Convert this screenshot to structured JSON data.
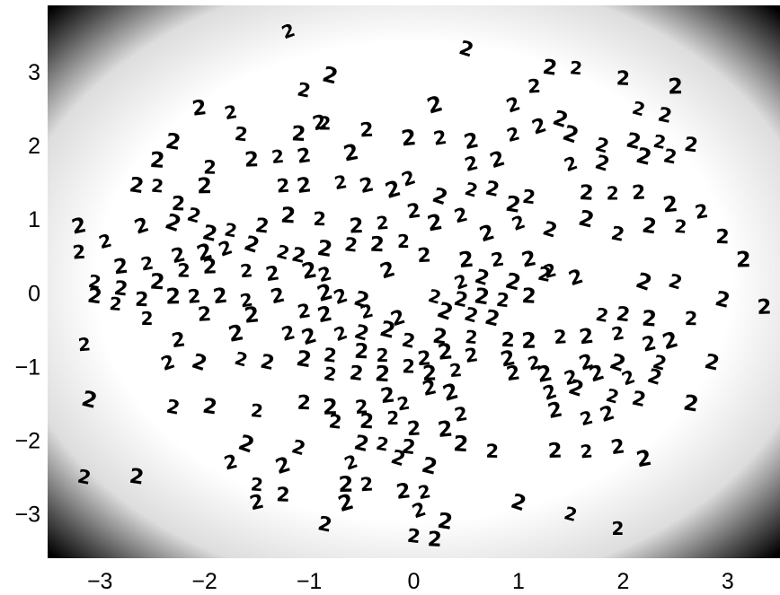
{
  "chart_data": {
    "type": "scatter",
    "title": "",
    "xlabel": "",
    "ylabel": "",
    "xlim": [
      -3.5,
      3.5
    ],
    "ylim": [
      -3.6,
      3.9
    ],
    "grid": false,
    "background": "grayscale density map, dark corners fading to white center",
    "marker_glyph": "2",
    "x_ticks": [
      {
        "value": -3,
        "label": "−3"
      },
      {
        "value": -2,
        "label": "−2"
      },
      {
        "value": -1,
        "label": "−1"
      },
      {
        "value": 0,
        "label": "0"
      },
      {
        "value": 1,
        "label": "1"
      },
      {
        "value": 2,
        "label": "2"
      },
      {
        "value": 3,
        "label": "3"
      }
    ],
    "y_ticks": [
      {
        "value": 3,
        "label": "3"
      },
      {
        "value": 2,
        "label": "2"
      },
      {
        "value": 1,
        "label": "1"
      },
      {
        "value": 0,
        "label": "0"
      },
      {
        "value": -1,
        "label": "−1"
      },
      {
        "value": -2,
        "label": "−2"
      },
      {
        "value": -3,
        "label": "−3"
      }
    ],
    "points": [
      [
        -1.2,
        3.55
      ],
      [
        0.5,
        3.3
      ],
      [
        -0.8,
        2.95
      ],
      [
        -1.05,
        2.75
      ],
      [
        1.3,
        3.05
      ],
      [
        1.55,
        3.05
      ],
      [
        2.0,
        2.9
      ],
      [
        2.5,
        2.8
      ],
      [
        1.15,
        2.8
      ],
      [
        -2.05,
        2.5
      ],
      [
        -1.75,
        2.45
      ],
      [
        -0.9,
        2.3
      ],
      [
        0.2,
        2.55
      ],
      [
        0.95,
        2.55
      ],
      [
        1.4,
        2.35
      ],
      [
        2.15,
        2.5
      ],
      [
        2.4,
        2.4
      ],
      [
        -2.3,
        2.05
      ],
      [
        -1.65,
        2.15
      ],
      [
        -1.1,
        2.15
      ],
      [
        -0.85,
        2.3
      ],
      [
        -0.45,
        2.2
      ],
      [
        -0.05,
        2.1
      ],
      [
        0.25,
        2.1
      ],
      [
        0.55,
        2.05
      ],
      [
        0.95,
        2.15
      ],
      [
        1.2,
        2.25
      ],
      [
        1.5,
        2.15
      ],
      [
        1.8,
        2.0
      ],
      [
        2.1,
        2.05
      ],
      [
        2.35,
        2.05
      ],
      [
        2.65,
        2.0
      ],
      [
        -2.45,
        1.8
      ],
      [
        -1.95,
        1.7
      ],
      [
        -1.55,
        1.8
      ],
      [
        -1.3,
        1.85
      ],
      [
        -1.05,
        1.85
      ],
      [
        -0.6,
        1.9
      ],
      [
        0.55,
        1.75
      ],
      [
        0.8,
        1.8
      ],
      [
        1.5,
        1.75
      ],
      [
        1.8,
        1.75
      ],
      [
        2.2,
        1.85
      ],
      [
        2.45,
        1.85
      ],
      [
        -2.65,
        1.45
      ],
      [
        -2.45,
        1.45
      ],
      [
        -2.25,
        1.2
      ],
      [
        -2.0,
        1.45
      ],
      [
        -1.25,
        1.45
      ],
      [
        -1.05,
        1.45
      ],
      [
        -0.7,
        1.5
      ],
      [
        -0.45,
        1.45
      ],
      [
        -0.2,
        1.4
      ],
      [
        -0.05,
        1.55
      ],
      [
        0.25,
        1.3
      ],
      [
        0.55,
        1.4
      ],
      [
        0.75,
        1.4
      ],
      [
        0.95,
        1.2
      ],
      [
        1.1,
        1.3
      ],
      [
        1.65,
        1.35
      ],
      [
        1.9,
        1.35
      ],
      [
        2.15,
        1.35
      ],
      [
        2.45,
        1.2
      ],
      [
        2.75,
        1.1
      ],
      [
        -3.2,
        0.9
      ],
      [
        -2.95,
        0.7
      ],
      [
        -2.6,
        0.9
      ],
      [
        -2.3,
        0.95
      ],
      [
        -2.1,
        1.05
      ],
      [
        -1.95,
        0.8
      ],
      [
        -1.75,
        0.85
      ],
      [
        -1.45,
        0.9
      ],
      [
        -1.2,
        1.05
      ],
      [
        -0.9,
        1.0
      ],
      [
        -0.55,
        0.9
      ],
      [
        -0.3,
        0.95
      ],
      [
        0.0,
        1.1
      ],
      [
        0.2,
        0.95
      ],
      [
        0.45,
        1.05
      ],
      [
        0.7,
        0.8
      ],
      [
        1.0,
        0.95
      ],
      [
        1.3,
        0.85
      ],
      [
        1.65,
        1.0
      ],
      [
        1.95,
        0.8
      ],
      [
        2.25,
        0.9
      ],
      [
        2.55,
        0.9
      ],
      [
        2.95,
        0.75
      ],
      [
        3.15,
        0.45
      ],
      [
        -3.2,
        0.55
      ],
      [
        -2.8,
        0.35
      ],
      [
        -2.55,
        0.4
      ],
      [
        -2.25,
        0.5
      ],
      [
        -2.0,
        0.55
      ],
      [
        -1.8,
        0.6
      ],
      [
        -1.55,
        0.65
      ],
      [
        -1.25,
        0.55
      ],
      [
        -1.1,
        0.5
      ],
      [
        -0.85,
        0.6
      ],
      [
        -0.6,
        0.65
      ],
      [
        -0.35,
        0.65
      ],
      [
        -0.1,
        0.7
      ],
      [
        0.1,
        0.5
      ],
      [
        0.5,
        0.45
      ],
      [
        0.8,
        0.45
      ],
      [
        1.1,
        0.45
      ],
      [
        1.3,
        0.3
      ],
      [
        1.55,
        0.2
      ],
      [
        2.2,
        0.15
      ],
      [
        2.5,
        0.15
      ],
      [
        2.95,
        -0.1
      ],
      [
        -3.05,
        0.15
      ],
      [
        -2.8,
        0.05
      ],
      [
        -2.45,
        0.15
      ],
      [
        -2.2,
        0.3
      ],
      [
        -1.95,
        0.35
      ],
      [
        -1.6,
        0.3
      ],
      [
        -1.35,
        0.25
      ],
      [
        -1.0,
        0.3
      ],
      [
        -0.85,
        0.25
      ],
      [
        -0.25,
        0.3
      ],
      [
        0.45,
        0.15
      ],
      [
        0.65,
        0.2
      ],
      [
        0.95,
        0.15
      ],
      [
        1.25,
        0.25
      ],
      [
        -3.05,
        -0.05
      ],
      [
        -2.85,
        -0.15
      ],
      [
        -2.6,
        -0.1
      ],
      [
        -2.3,
        -0.05
      ],
      [
        -2.1,
        -0.05
      ],
      [
        -1.85,
        -0.05
      ],
      [
        -1.6,
        -0.1
      ],
      [
        -1.3,
        -0.05
      ],
      [
        -0.85,
        0.0
      ],
      [
        -0.7,
        -0.05
      ],
      [
        -0.5,
        -0.1
      ],
      [
        0.2,
        -0.05
      ],
      [
        0.45,
        -0.1
      ],
      [
        0.65,
        -0.05
      ],
      [
        0.85,
        -0.1
      ],
      [
        1.1,
        -0.05
      ],
      [
        -2.55,
        -0.35
      ],
      [
        -2.0,
        -0.3
      ],
      [
        -1.55,
        -0.3
      ],
      [
        -1.05,
        -0.25
      ],
      [
        -0.85,
        -0.3
      ],
      [
        -0.45,
        -0.25
      ],
      [
        -0.15,
        -0.35
      ],
      [
        0.3,
        -0.25
      ],
      [
        0.55,
        -0.3
      ],
      [
        0.75,
        -0.35
      ],
      [
        1.8,
        -0.3
      ],
      [
        2.0,
        -0.3
      ],
      [
        2.25,
        -0.35
      ],
      [
        2.65,
        -0.35
      ],
      [
        3.35,
        -0.2
      ],
      [
        -3.15,
        -0.7
      ],
      [
        -2.25,
        -0.65
      ],
      [
        -1.7,
        -0.55
      ],
      [
        -1.2,
        -0.55
      ],
      [
        -1.0,
        -0.6
      ],
      [
        -0.7,
        -0.55
      ],
      [
        -0.5,
        -0.55
      ],
      [
        -0.25,
        -0.5
      ],
      [
        -0.05,
        -0.65
      ],
      [
        0.25,
        -0.6
      ],
      [
        0.55,
        -0.6
      ],
      [
        0.9,
        -0.65
      ],
      [
        1.1,
        -0.65
      ],
      [
        1.4,
        -0.6
      ],
      [
        1.65,
        -0.6
      ],
      [
        1.95,
        -0.55
      ],
      [
        2.25,
        -0.7
      ],
      [
        2.45,
        -0.65
      ],
      [
        -2.35,
        -0.95
      ],
      [
        -2.05,
        -0.95
      ],
      [
        -1.65,
        -0.9
      ],
      [
        -1.4,
        -0.95
      ],
      [
        -1.05,
        -0.9
      ],
      [
        -0.8,
        -0.85
      ],
      [
        -0.5,
        -0.8
      ],
      [
        -0.3,
        -0.85
      ],
      [
        0.1,
        -0.9
      ],
      [
        0.3,
        -0.8
      ],
      [
        0.55,
        -0.85
      ],
      [
        0.9,
        -0.9
      ],
      [
        1.15,
        -0.95
      ],
      [
        1.65,
        -0.95
      ],
      [
        1.95,
        -0.95
      ],
      [
        2.35,
        -0.95
      ],
      [
        2.85,
        -0.95
      ],
      [
        -0.8,
        -1.1
      ],
      [
        -0.55,
        -1.1
      ],
      [
        -0.3,
        -1.1
      ],
      [
        -0.05,
        -1.0
      ],
      [
        0.15,
        -1.1
      ],
      [
        0.4,
        -1.05
      ],
      [
        0.95,
        -1.1
      ],
      [
        1.25,
        -1.1
      ],
      [
        1.5,
        -1.15
      ],
      [
        1.75,
        -1.1
      ],
      [
        2.05,
        -1.15
      ],
      [
        2.3,
        -1.15
      ],
      [
        -3.1,
        -1.45
      ],
      [
        -2.3,
        -1.55
      ],
      [
        -1.95,
        -1.55
      ],
      [
        -1.5,
        -1.6
      ],
      [
        -1.05,
        -1.5
      ],
      [
        -0.8,
        -1.55
      ],
      [
        -0.5,
        -1.55
      ],
      [
        -0.25,
        -1.4
      ],
      [
        -0.1,
        -1.5
      ],
      [
        0.15,
        -1.3
      ],
      [
        0.35,
        -1.35
      ],
      [
        1.3,
        -1.35
      ],
      [
        1.55,
        -1.3
      ],
      [
        1.9,
        -1.4
      ],
      [
        2.15,
        -1.45
      ],
      [
        2.65,
        -1.5
      ],
      [
        -0.75,
        -1.75
      ],
      [
        -0.45,
        -1.75
      ],
      [
        -0.2,
        -1.7
      ],
      [
        0.0,
        -1.85
      ],
      [
        0.3,
        -1.85
      ],
      [
        0.45,
        -1.65
      ],
      [
        1.35,
        -1.6
      ],
      [
        1.65,
        -1.7
      ],
      [
        1.85,
        -1.65
      ],
      [
        -1.6,
        -2.05
      ],
      [
        -1.1,
        -2.1
      ],
      [
        -0.5,
        -2.05
      ],
      [
        -0.3,
        -2.05
      ],
      [
        -0.05,
        -2.1
      ],
      [
        0.45,
        -2.05
      ],
      [
        0.75,
        -2.15
      ],
      [
        1.35,
        -2.15
      ],
      [
        1.65,
        -2.15
      ],
      [
        1.95,
        -2.1
      ],
      [
        2.2,
        -2.25
      ],
      [
        -1.75,
        -2.3
      ],
      [
        -1.25,
        -2.35
      ],
      [
        -0.6,
        -2.3
      ],
      [
        -0.15,
        -2.25
      ],
      [
        0.15,
        -2.35
      ],
      [
        -3.15,
        -2.5
      ],
      [
        -2.65,
        -2.5
      ],
      [
        -1.5,
        -2.6
      ],
      [
        -1.25,
        -2.75
      ],
      [
        -0.65,
        -2.6
      ],
      [
        -0.45,
        -2.6
      ],
      [
        -0.1,
        -2.7
      ],
      [
        0.1,
        -2.7
      ],
      [
        -1.5,
        -2.85
      ],
      [
        -0.65,
        -2.85
      ],
      [
        0.05,
        -2.95
      ],
      [
        1.0,
        -2.85
      ],
      [
        1.5,
        -3.0
      ],
      [
        -0.85,
        -3.15
      ],
      [
        0.3,
        -3.1
      ],
      [
        0.0,
        -3.3
      ],
      [
        0.2,
        -3.35
      ],
      [
        1.95,
        -3.2
      ]
    ]
  }
}
